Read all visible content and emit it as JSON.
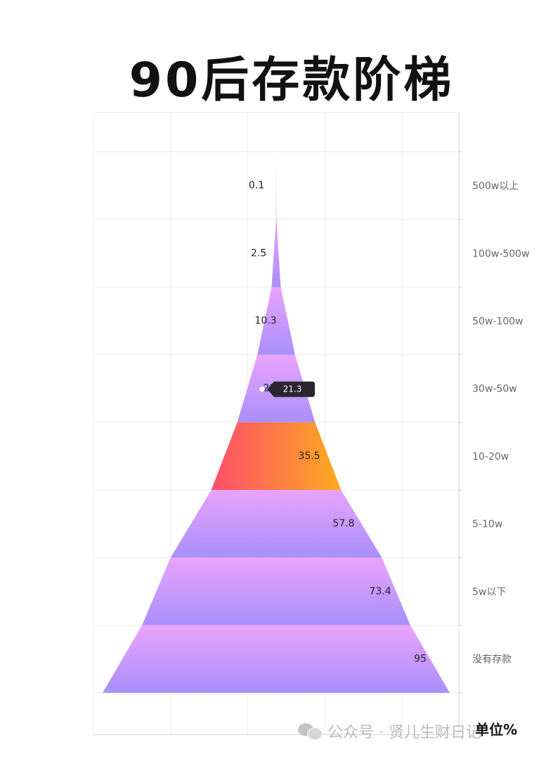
{
  "title": "90后存款阶梯",
  "unit_label": "单位%",
  "watermark": {
    "icon": "wechat-icon",
    "text": "公众号 · 贤儿生财日记"
  },
  "colors": {
    "band_top": "#e9a3fd",
    "band_bottom": "#a98ffc",
    "highlight_left": "#ff4c6c",
    "highlight_right": "#ffab1e",
    "tooltip_bg": "#2b2530"
  },
  "tooltip": {
    "value": "21.3"
  },
  "chart_data": {
    "type": "funnel",
    "orientation": "pyramid",
    "categories": [
      "500w以上",
      "100w-500w",
      "50w-100w",
      "30w-50w",
      "10-20w",
      "5-10w",
      "5w以下",
      "没有存款"
    ],
    "values": [
      0.1,
      2.5,
      10.3,
      21.3,
      35.5,
      57.8,
      73.4,
      95
    ],
    "highlight_index": 4,
    "unit": "%",
    "grid": true
  }
}
